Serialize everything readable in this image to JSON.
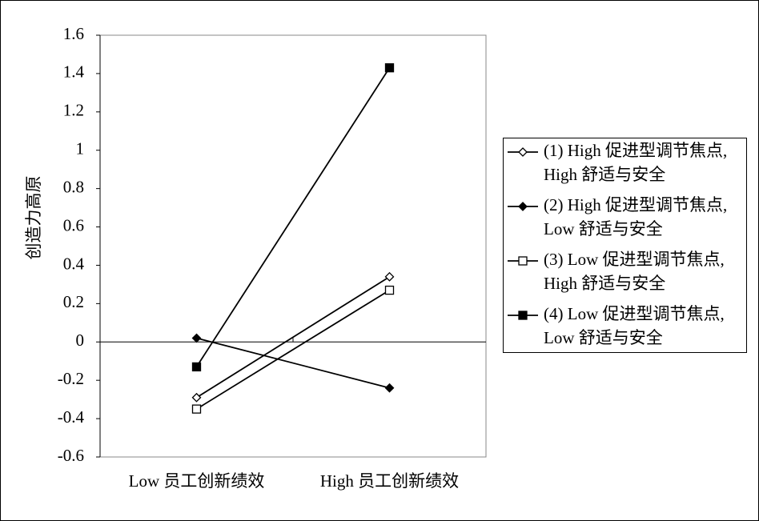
{
  "chart_data": {
    "type": "line",
    "y_label": "创造力高原",
    "categories": [
      "Low 员工创新绩效",
      "High 员工创新绩效"
    ],
    "series": [
      {
        "name": [
          "(1) High 促进型调节焦点,",
          "High 舒适与安全"
        ],
        "color": "#000000",
        "marker": "diamond",
        "filled": false,
        "values": [
          -0.29,
          0.34
        ]
      },
      {
        "name": [
          "(2) High 促进型调节焦点,",
          "Low 舒适与安全"
        ],
        "color": "#000000",
        "marker": "diamond",
        "filled": true,
        "values": [
          0.02,
          -0.24
        ]
      },
      {
        "name": [
          "(3) Low 促进型调节焦点,",
          "High 舒适与安全"
        ],
        "color": "#000000",
        "marker": "square",
        "filled": false,
        "values": [
          -0.35,
          0.27
        ]
      },
      {
        "name": [
          "(4) Low 促进型调节焦点,",
          "Low 舒适与安全"
        ],
        "color": "#000000",
        "marker": "square",
        "filled": true,
        "values": [
          -0.13,
          1.43
        ]
      }
    ],
    "ylim": [
      -0.6,
      1.6
    ],
    "yticks": [
      -0.6,
      -0.4,
      -0.2,
      0,
      0.2,
      0.4,
      0.6,
      0.8,
      1,
      1.2,
      1.4,
      1.6
    ],
    "legend": "right"
  }
}
